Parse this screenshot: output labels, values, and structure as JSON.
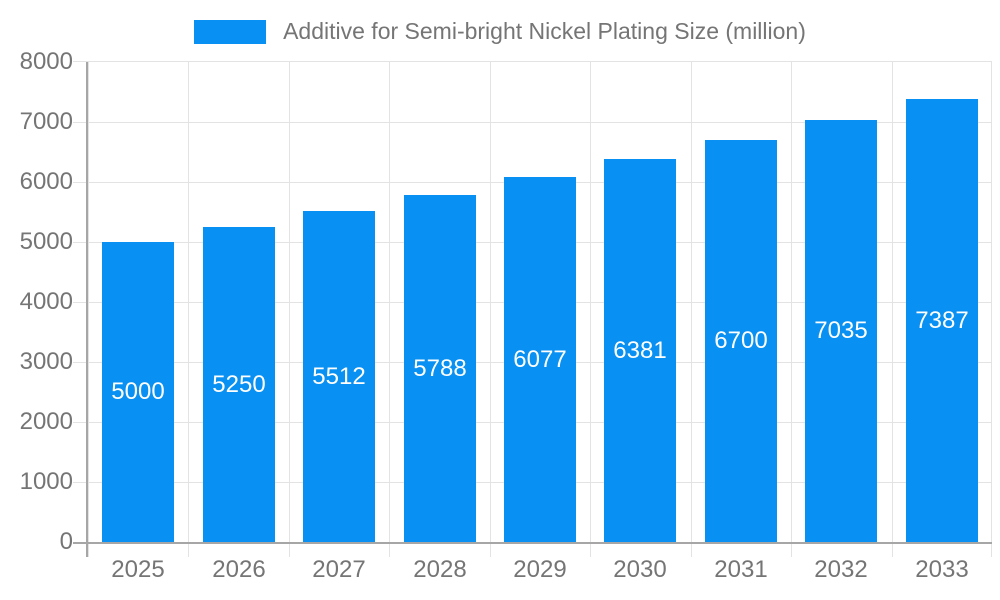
{
  "legend": {
    "label": "Additive for Semi-bright Nickel Plating Size (million)"
  },
  "chart_data": {
    "type": "bar",
    "title": "Additive for Semi-bright Nickel Plating Size (million)",
    "categories": [
      "2025",
      "2026",
      "2027",
      "2028",
      "2029",
      "2030",
      "2031",
      "2032",
      "2033"
    ],
    "series": [
      {
        "name": "Additive for Semi-bright Nickel Plating Size (million)",
        "values": [
          5000,
          5250,
          5512,
          5788,
          6077,
          6381,
          6700,
          7035,
          7387
        ],
        "data_labels": [
          "5000",
          "5250",
          "5512",
          "5788",
          "6077",
          "6381",
          "6700",
          "7035",
          "7387"
        ]
      }
    ],
    "xlabel": "",
    "ylabel": "",
    "ylim": [
      0,
      8000
    ],
    "yticks": [
      0,
      1000,
      2000,
      3000,
      4000,
      5000,
      6000,
      7000,
      8000
    ],
    "ytick_labels": [
      "0",
      "1000",
      "2000",
      "3000",
      "4000",
      "5000",
      "6000",
      "7000",
      "8000"
    ],
    "grid": true,
    "legend_position": "top",
    "data_label_position": "inside-center",
    "colors": {
      "bar": "#0890f2",
      "grid": "#e3e3e3",
      "axis": "#a6a6a6",
      "tick_text": "#757575",
      "value_text": "#ffffff",
      "background": "#ffffff"
    }
  }
}
